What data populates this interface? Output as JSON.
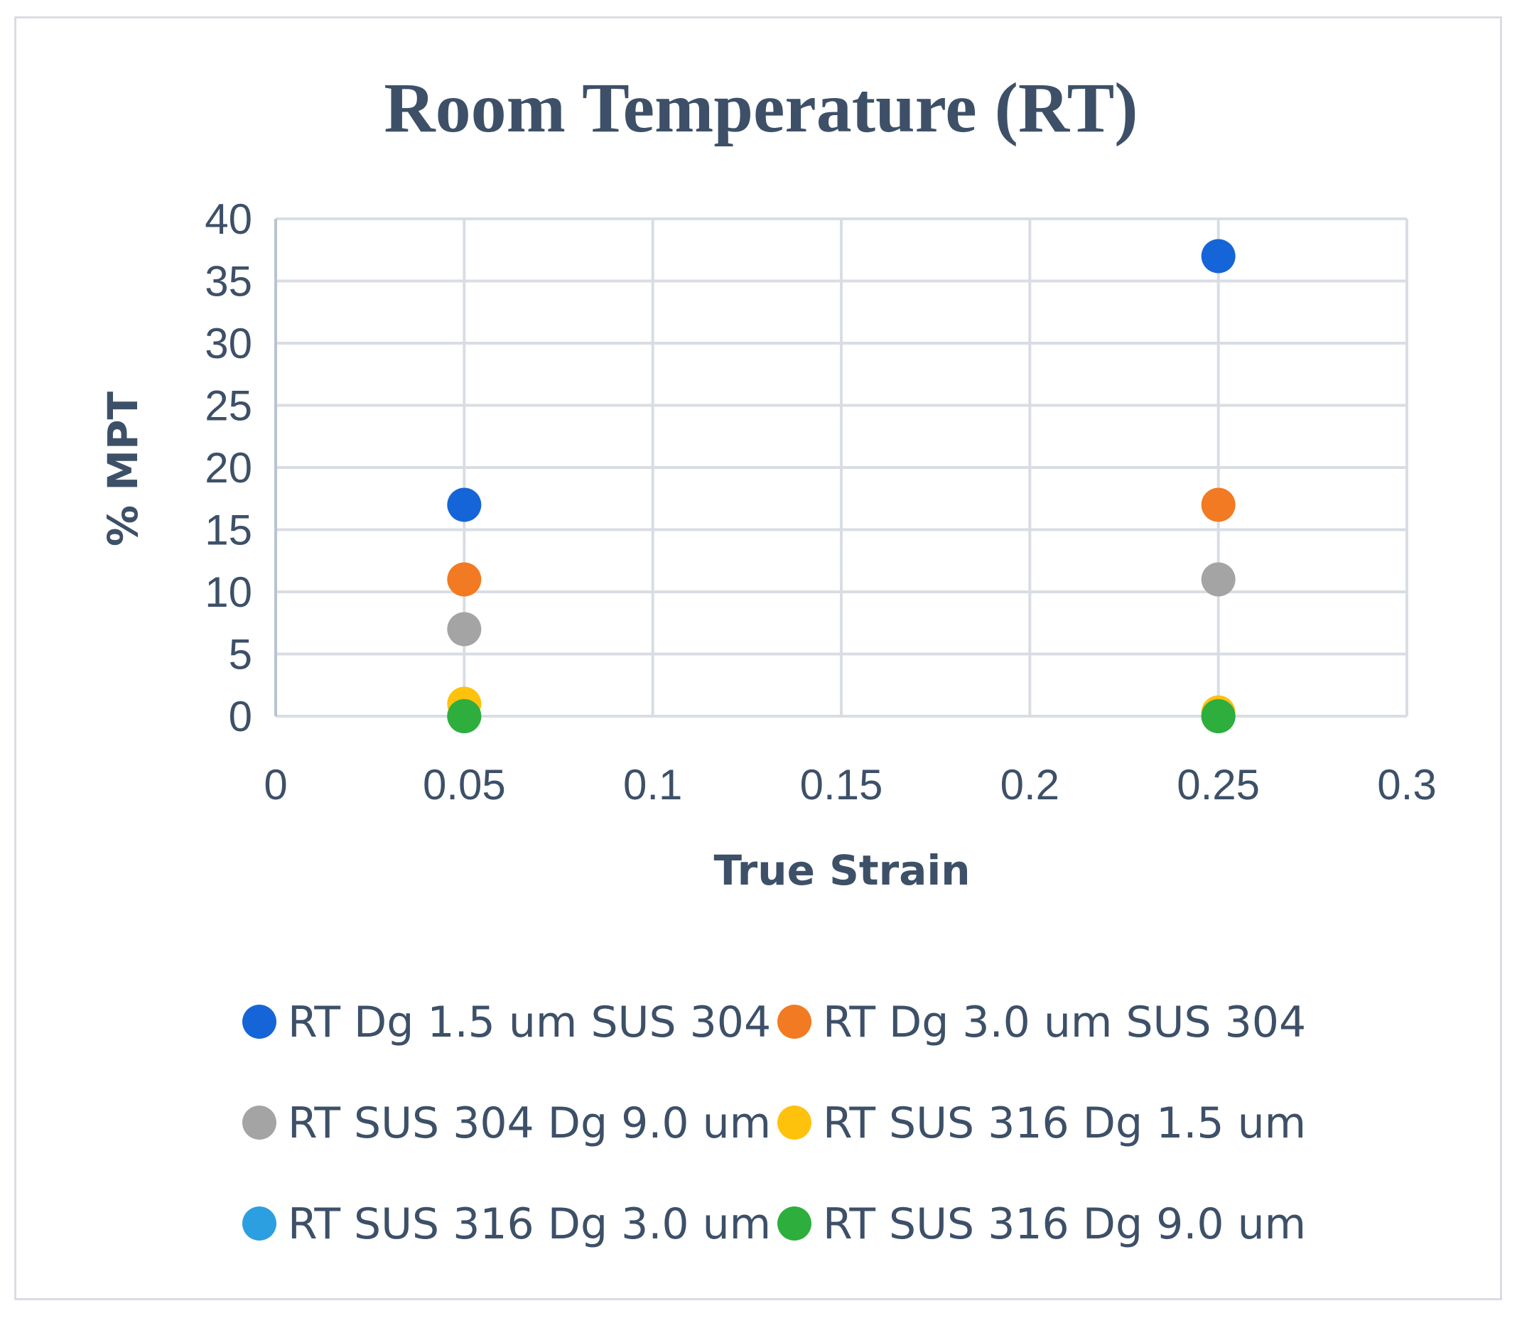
{
  "chart_data": {
    "type": "scatter",
    "title": "Room Temperature (RT)",
    "xlabel": "True Strain",
    "ylabel": "% MPT",
    "xlim": [
      0,
      0.3
    ],
    "ylim": [
      0,
      40
    ],
    "xticks": [
      "0",
      "0.05",
      "0.1",
      "0.15",
      "0.2",
      "0.25",
      "0.3"
    ],
    "yticks": [
      "0",
      "5",
      "10",
      "15",
      "20",
      "25",
      "30",
      "35",
      "40"
    ],
    "xtick_values": [
      0,
      0.05,
      0.1,
      0.15,
      0.2,
      0.25,
      0.3
    ],
    "ytick_values": [
      0,
      5,
      10,
      15,
      20,
      25,
      30,
      35,
      40
    ],
    "grid": true,
    "legend_position": "bottom",
    "series": [
      {
        "name": "RT Dg 1.5 um SUS 304",
        "color": "#1565d8",
        "points": [
          [
            0.05,
            17
          ],
          [
            0.25,
            37
          ]
        ]
      },
      {
        "name": "RT Dg 3.0 um SUS 304",
        "color": "#f27a22",
        "points": [
          [
            0.05,
            11
          ],
          [
            0.25,
            17
          ]
        ]
      },
      {
        "name": "RT SUS 304 Dg 9.0 um",
        "color": "#a4a4a4",
        "points": [
          [
            0.05,
            7
          ],
          [
            0.25,
            11
          ]
        ]
      },
      {
        "name": "RT SUS 316 Dg 1.5 um",
        "color": "#fec20d",
        "points": [
          [
            0.05,
            1
          ],
          [
            0.25,
            0.3
          ]
        ]
      },
      {
        "name": "RT SUS 316 Dg 3.0 um",
        "color": "#2c9fe0",
        "points": [
          [
            0.05,
            0
          ],
          [
            0.25,
            0
          ]
        ]
      },
      {
        "name": "RT SUS 316 Dg 9.0 um",
        "color": "#2eae3c",
        "points": [
          [
            0.05,
            0
          ],
          [
            0.25,
            0
          ]
        ]
      }
    ]
  }
}
